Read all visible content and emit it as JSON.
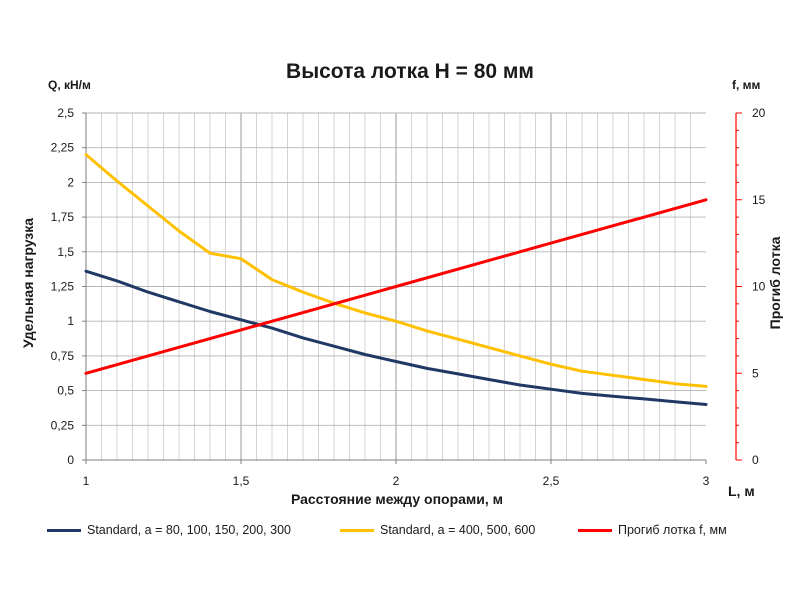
{
  "chart_data": {
    "type": "line",
    "title": "Высота лотка H = 80 мм",
    "xlabel": "Расстояние между опорами, м",
    "x_unit_label": "L, м",
    "ylabel_left": "Удельная нагрузка",
    "y_unit_left": "Q, кН/м",
    "ylabel_right": "Прогиб лотка",
    "y_unit_right": "f, мм",
    "xlim": [
      1,
      3
    ],
    "ylim_left": [
      0,
      2.5
    ],
    "ylim_right": [
      0,
      20
    ],
    "x_ticks": [
      "1",
      "1,5",
      "2",
      "2,5",
      "3"
    ],
    "y_ticks_left": [
      "0",
      "0,25",
      "0,5",
      "0,75",
      "1",
      "1,25",
      "1,5",
      "1,75",
      "2",
      "2,25",
      "2,5"
    ],
    "y_ticks_right": [
      "0",
      "5",
      "10",
      "15",
      "20"
    ],
    "grid": true,
    "legend_position": "bottom",
    "series": [
      {
        "name": "Standard,  a = 80, 100, 150, 200, 300",
        "axis": "left",
        "color": "#1f3864",
        "x": [
          1,
          1.1,
          1.2,
          1.3,
          1.4,
          1.5,
          1.6,
          1.7,
          1.8,
          1.9,
          2,
          2.1,
          2.2,
          2.3,
          2.4,
          2.5,
          2.6,
          2.7,
          2.8,
          2.9,
          3
        ],
        "y": [
          1.36,
          1.29,
          1.21,
          1.14,
          1.07,
          1.01,
          0.95,
          0.88,
          0.82,
          0.76,
          0.71,
          0.66,
          0.62,
          0.58,
          0.54,
          0.51,
          0.48,
          0.46,
          0.44,
          0.42,
          0.4
        ]
      },
      {
        "name": "Standard,  a = 400, 500, 600",
        "axis": "left",
        "color": "#ffc000",
        "x": [
          1,
          1.1,
          1.2,
          1.3,
          1.4,
          1.5,
          1.6,
          1.7,
          1.8,
          1.9,
          2,
          2.1,
          2.2,
          2.3,
          2.4,
          2.5,
          2.6,
          2.7,
          2.8,
          2.9,
          3
        ],
        "y": [
          2.2,
          2.01,
          1.83,
          1.65,
          1.49,
          1.45,
          1.3,
          1.21,
          1.13,
          1.06,
          1.0,
          0.93,
          0.87,
          0.81,
          0.75,
          0.69,
          0.64,
          0.61,
          0.58,
          0.55,
          0.53
        ]
      },
      {
        "name": "Прогиб лотка f, мм",
        "axis": "right",
        "color": "#ff0000",
        "x": [
          1,
          1.5,
          2,
          2.5,
          3
        ],
        "y": [
          5.0,
          7.5,
          10.0,
          12.5,
          15.0
        ]
      }
    ]
  }
}
